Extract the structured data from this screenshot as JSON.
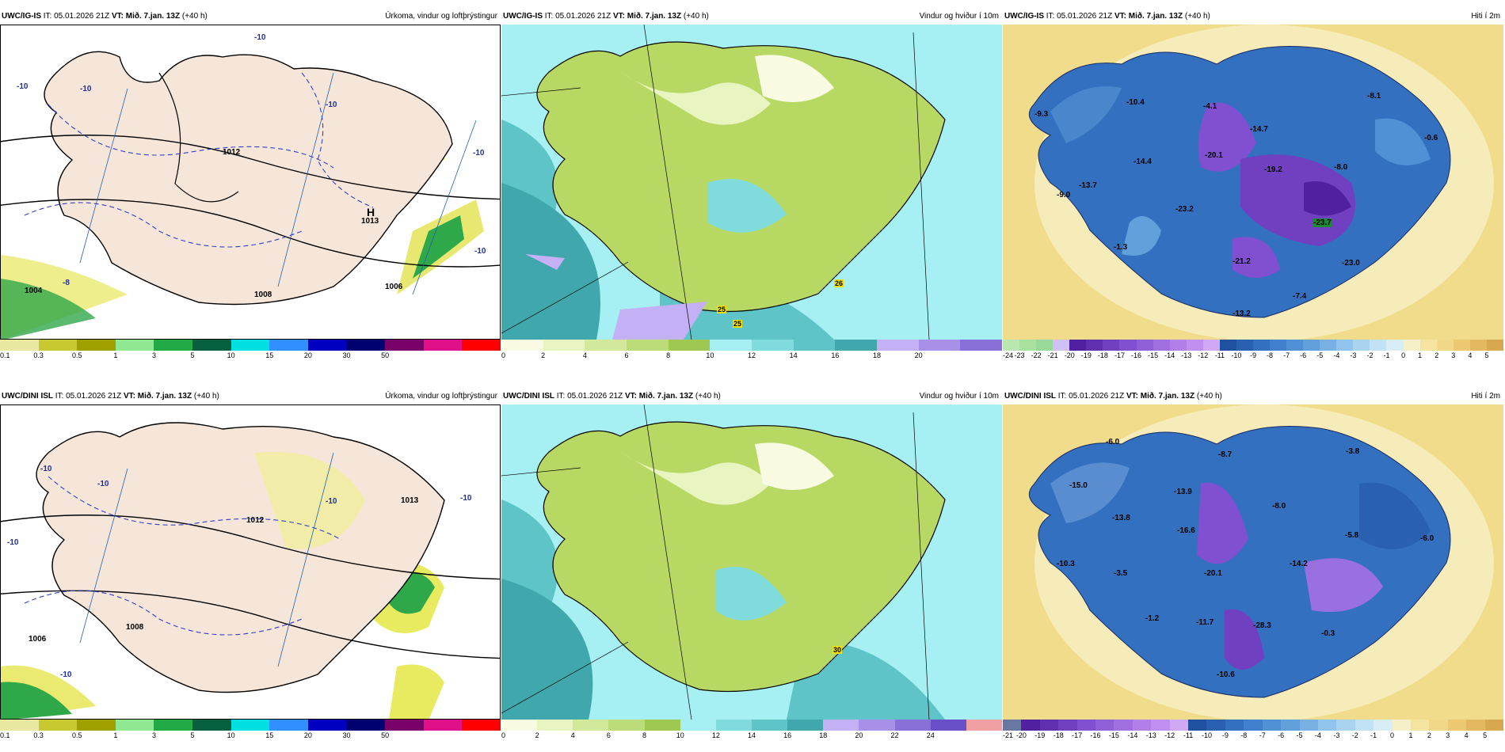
{
  "panels": [
    {
      "id": "p1",
      "model": "UWC/IG-IS",
      "it": "IT: 05.01.2026 21Z",
      "vt": "VT: Mið. 7.jan. 13Z",
      "lead": "(+40 h)",
      "title": "Úrkoma, vindur og loftþrýstingur",
      "scale": [
        "0.1",
        "0.3",
        "0.5",
        "1",
        "3",
        "5",
        "10",
        "15",
        "20",
        "30",
        "50"
      ],
      "colors": [
        "#e8e8a0",
        "#c8c832",
        "#a0a000",
        "#90e890",
        "#22aa44",
        "#066040",
        "#00e0e0",
        "#3090ff",
        "#0000c0",
        "#000070",
        "#7a006a",
        "#e0108a",
        "#ff0000"
      ],
      "labels": [
        "-10",
        "-10",
        "-10",
        "-10",
        "-10",
        "1012",
        "1013",
        "1008",
        "1004",
        "1006",
        "-8",
        "-10"
      ],
      "hmark": "H"
    },
    {
      "id": "p2",
      "model": "UWC/IG-IS",
      "it": "IT: 05.01.2026 21Z",
      "vt": "VT: Mið. 7.jan. 13Z",
      "lead": "(+40 h)",
      "title": "Vindur og hviður í 10m",
      "scale": [
        "0",
        "2",
        "4",
        "6",
        "8",
        "10",
        "12",
        "14",
        "16",
        "18",
        "20"
      ],
      "colors": [
        "#f8fbe2",
        "#e8f5c0",
        "#d2e89a",
        "#bcdc7a",
        "#9ec852",
        "#a6f0f4",
        "#80dcdc",
        "#5ec4c8",
        "#40a8ac",
        "#c4b0f4",
        "#a890e8",
        "#8870d8"
      ],
      "gusts": [
        "25",
        "25",
        "26"
      ]
    },
    {
      "id": "p3",
      "model": "UWC/IG-IS",
      "it": "IT: 05.01.2026 21Z",
      "vt": "VT: Mið. 7.jan. 13Z",
      "lead": "(+40 h)",
      "title": "Hiti í 2m",
      "scale": [
        "-24",
        "-23",
        "-22",
        "-21",
        "-20",
        "-19",
        "-18",
        "-17",
        "-16",
        "-15",
        "-14",
        "-13",
        "-12",
        "-11",
        "-10",
        "-9",
        "-8",
        "-7",
        "-6",
        "-5",
        "-4",
        "-3",
        "-2",
        "-1",
        "0",
        "1",
        "2",
        "3",
        "4",
        "5"
      ],
      "colors": [
        "#b8e8b0",
        "#a8e0a0",
        "#98d898",
        "#d0c0f8",
        "#5020a0",
        "#6030b0",
        "#7040c0",
        "#8050d0",
        "#9060d8",
        "#a070e0",
        "#b080e8",
        "#c090f0",
        "#d0a8f4",
        "#2050a0",
        "#2a60b0",
        "#3470c0",
        "#4080cc",
        "#5090d4",
        "#62a0dc",
        "#78b0e4",
        "#90c4ec",
        "#a8d4f0",
        "#c0e2f4",
        "#d8eef6",
        "#f6f0c8",
        "#f4e4a0",
        "#f0d888",
        "#ecc870",
        "#e4b860",
        "#d8a850"
      ],
      "labels": [
        "-10.4",
        "-9.3",
        "-4.1",
        "-8.1",
        "-14.7",
        "-0.6",
        "-20.1",
        "-19.2",
        "-8.0",
        "-14.4",
        "-13.7",
        "-9.0",
        "-23.2",
        "-23.7",
        "-1.3",
        "-21.2",
        "-23.0",
        "-7.4",
        "-13.2"
      ]
    },
    {
      "id": "p4",
      "model": "UWC/DINI ISL",
      "it": "IT: 05.01.2026 21Z",
      "vt": "VT: Mið. 7.jan. 13Z",
      "lead": "(+40 h)",
      "title": "Úrkoma, vindur og loftþrýstingur",
      "scale": [
        "0.1",
        "0.3",
        "0.5",
        "1",
        "3",
        "5",
        "10",
        "15",
        "20",
        "30",
        "50"
      ],
      "colors": [
        "#e8e8a0",
        "#c8c832",
        "#a0a000",
        "#90e890",
        "#22aa44",
        "#066040",
        "#00e0e0",
        "#3090ff",
        "#0000c0",
        "#000070",
        "#7a006a",
        "#e0108a",
        "#ff0000"
      ],
      "labels": [
        "-10",
        "-10",
        "-10",
        "-10",
        "-10",
        "1012",
        "1013",
        "1008",
        "1006",
        "-10"
      ]
    },
    {
      "id": "p5",
      "model": "UWC/DINI ISL",
      "it": "IT: 05.01.2026 21Z",
      "vt": "VT: Mið. 7.jan. 13Z",
      "lead": "(+40 h)",
      "title": "Vindur og hviður í 10m",
      "scale": [
        "0",
        "2",
        "4",
        "6",
        "8",
        "10",
        "12",
        "14",
        "16",
        "18",
        "20",
        "22",
        "24"
      ],
      "colors": [
        "#f8fbe2",
        "#e8f5c0",
        "#d2e89a",
        "#bcdc7a",
        "#9ec852",
        "#a6f0f4",
        "#80dcdc",
        "#5ec4c8",
        "#40a8ac",
        "#c4b0f4",
        "#a890e8",
        "#8870d8",
        "#6a50c8",
        "#f0a0a0"
      ],
      "gusts": [
        "30"
      ]
    },
    {
      "id": "p6",
      "model": "UWC/DINI ISL",
      "it": "IT: 05.01.2026 21Z",
      "vt": "VT: Mið. 7.jan. 13Z",
      "lead": "(+40 h)",
      "title": "Hiti í 2m",
      "scale": [
        "-21",
        "-20",
        "-19",
        "-18",
        "-17",
        "-16",
        "-15",
        "-14",
        "-13",
        "-12",
        "-11",
        "-10",
        "-9",
        "-8",
        "-7",
        "-6",
        "-5",
        "-4",
        "-3",
        "-2",
        "-1",
        "0",
        "1",
        "2",
        "3",
        "4",
        "5"
      ],
      "colors": [
        "#6878a0",
        "#5020a0",
        "#6030b0",
        "#7040c0",
        "#8050d0",
        "#9060d8",
        "#a070e0",
        "#b080e8",
        "#c090f0",
        "#d0a8f4",
        "#2050a0",
        "#2a60b0",
        "#3470c0",
        "#4080cc",
        "#5090d4",
        "#62a0dc",
        "#78b0e4",
        "#90c4ec",
        "#a8d4f0",
        "#c0e2f4",
        "#d8eef6",
        "#f6f0c8",
        "#f4e4a0",
        "#f0d888",
        "#ecc870",
        "#e4b860",
        "#d8a850"
      ],
      "labels": [
        "-6.0",
        "-8.7",
        "-3.8",
        "-15.0",
        "-13.9",
        "-8.0",
        "-13.8",
        "-16.6",
        "-5.8",
        "-6.0",
        "-10.3",
        "-3.5",
        "-20.1",
        "-14.2",
        "-1.2",
        "-11.7",
        "-28.3",
        "-0.3",
        "-10.6"
      ]
    }
  ]
}
